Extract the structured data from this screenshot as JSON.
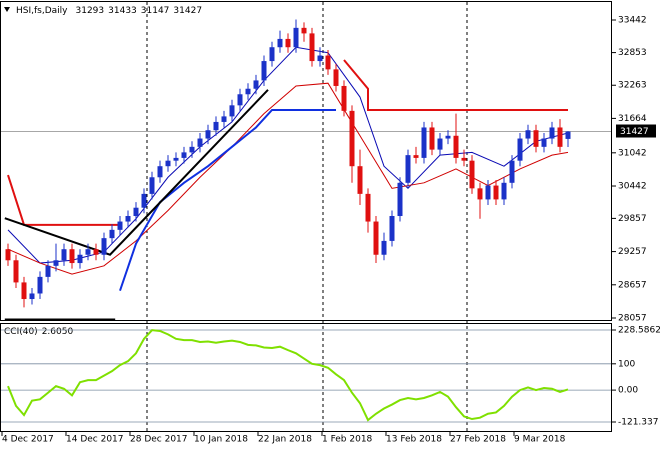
{
  "chart_data": [
    {
      "type": "candlestick",
      "title": "HSI,fs,Daily",
      "ohlc": [
        31293,
        31433,
        31147,
        31427
      ],
      "categories": [
        "4 Dec 2017",
        null,
        null,
        null,
        null,
        null,
        null,
        null,
        "14 Dec 2017",
        null,
        null,
        null,
        null,
        null,
        null,
        null,
        "28 Dec 2017",
        null,
        null,
        null,
        null,
        null,
        null,
        null,
        "10 Jan 2018",
        null,
        null,
        null,
        null,
        null,
        null,
        null,
        "22 Jan 2018",
        null,
        null,
        null,
        null,
        null,
        null,
        null,
        "1 Feb 2018",
        null,
        null,
        null,
        null,
        null,
        null,
        null,
        "13 Feb 2018",
        null,
        null,
        null,
        null,
        null,
        null,
        null,
        "27 Feb 2018",
        null,
        null,
        null,
        null,
        null,
        null,
        null,
        "9 Mar 2018",
        null,
        null,
        null,
        null,
        null,
        null
      ],
      "open": [
        29300,
        29100,
        28700,
        28400,
        28500,
        28800,
        29000,
        29100,
        29300,
        29050,
        29200,
        29300,
        29200,
        29500,
        29650,
        29800,
        29900,
        30050,
        30300,
        30600,
        30800,
        30900,
        30950,
        31050,
        31150,
        31300,
        31450,
        31600,
        31700,
        31900,
        32100,
        32200,
        32350,
        32700,
        32950,
        33100,
        32950,
        33300,
        33200,
        32700,
        32800,
        32550,
        32250,
        31800,
        30800,
        30300,
        29800,
        29200,
        29450,
        29900,
        30500,
        31000,
        30950,
        31500,
        31100,
        31300,
        31350,
        30950,
        30900,
        30400,
        30200,
        30450,
        30200,
        30500,
        30900,
        31300,
        31450,
        31150,
        31300,
        31500,
        31293
      ],
      "high": [
        29400,
        29200,
        28800,
        28600,
        28900,
        29100,
        29400,
        29400,
        29400,
        29300,
        29400,
        29400,
        29600,
        29750,
        29900,
        30000,
        30150,
        30400,
        30700,
        30900,
        31000,
        31050,
        31150,
        31250,
        31400,
        31550,
        31700,
        31800,
        32000,
        32200,
        32300,
        32450,
        32800,
        33050,
        33250,
        33200,
        33450,
        33400,
        33300,
        32950,
        32900,
        32650,
        32350,
        31900,
        31100,
        30400,
        29900,
        29600,
        30000,
        30600,
        31100,
        31150,
        31600,
        31600,
        31400,
        31450,
        31750,
        31100,
        31000,
        30500,
        30550,
        30550,
        30600,
        31000,
        31400,
        31550,
        31550,
        31400,
        31600,
        31650,
        31433
      ],
      "low": [
        29000,
        28600,
        28250,
        28300,
        28400,
        28700,
        28900,
        29000,
        28950,
        28950,
        29100,
        29100,
        29100,
        29400,
        29550,
        29700,
        29800,
        29950,
        30200,
        30500,
        30700,
        30800,
        30850,
        30950,
        31050,
        31200,
        31350,
        31500,
        31600,
        31800,
        32000,
        32100,
        32250,
        32600,
        32850,
        32850,
        32850,
        33050,
        32600,
        32600,
        32450,
        32150,
        31700,
        30500,
        30100,
        29600,
        29050,
        29100,
        29350,
        29800,
        30400,
        30850,
        30850,
        31000,
        31000,
        31200,
        30850,
        30800,
        30300,
        29850,
        30100,
        30100,
        30100,
        30400,
        30800,
        31200,
        31050,
        31050,
        31200,
        31050,
        31147
      ],
      "close": [
        29100,
        28700,
        28400,
        28500,
        28800,
        29000,
        29100,
        29300,
        29050,
        29200,
        29300,
        29200,
        29500,
        29650,
        29800,
        29900,
        30050,
        30300,
        30600,
        30800,
        30900,
        30950,
        31050,
        31150,
        31300,
        31450,
        31600,
        31700,
        31900,
        32100,
        32200,
        32350,
        32700,
        32950,
        33100,
        32950,
        33300,
        33200,
        32700,
        32800,
        32550,
        32250,
        31800,
        30800,
        30300,
        29800,
        29200,
        29450,
        29900,
        30500,
        31000,
        30950,
        31500,
        31100,
        31300,
        31350,
        30950,
        30900,
        30400,
        30200,
        30450,
        30200,
        30500,
        30900,
        31300,
        31450,
        31150,
        31300,
        31500,
        31150,
        31427
      ],
      "up_color": "#1b32c8",
      "down_color": "#e01010",
      "lines": [
        {
          "color": "#0a0ab4",
          "width": 1,
          "x": [
            0,
            4,
            8,
            12,
            16,
            20,
            24,
            28,
            32,
            36,
            40,
            44,
            47,
            50,
            54,
            58,
            62,
            66,
            70
          ],
          "values": [
            29650,
            29050,
            29100,
            29250,
            29850,
            30600,
            31150,
            31600,
            32350,
            32950,
            32850,
            32050,
            30800,
            30400,
            31000,
            31050,
            30800,
            31250,
            31400
          ]
        },
        {
          "color": "#d00000",
          "width": 1,
          "x": [
            0,
            4,
            8,
            12,
            16,
            20,
            24,
            28,
            32,
            36,
            40,
            44,
            48,
            52,
            56,
            60,
            64,
            68,
            70
          ],
          "values": [
            29300,
            29050,
            28850,
            29000,
            29450,
            30000,
            30600,
            31150,
            31750,
            32250,
            32300,
            31350,
            30400,
            30500,
            30750,
            30450,
            30750,
            31000,
            31050
          ]
        },
        {
          "color": "#e01010",
          "width": 2,
          "x": [
            0,
            2,
            14,
            15,
            42,
            45,
            45,
            70
          ],
          "values": [
            30640,
            29740,
            29740,
            null,
            32720,
            32200,
            31816,
            31816
          ]
        },
        {
          "color": "#1030e0",
          "width": 2,
          "x": [
            14,
            16,
            19,
            22,
            25,
            28,
            31,
            33,
            41
          ],
          "values": [
            28550,
            29400,
            30150,
            30500,
            30800,
            31150,
            31500,
            31816,
            31816
          ]
        },
        {
          "color": "#000000",
          "width": 2,
          "x": [
            -0.4,
            12.75,
            32.5
          ],
          "values": [
            29860,
            29200,
            32180
          ]
        },
        {
          "color": "#000000",
          "width": 2,
          "x": [
            -0.4,
            13.4
          ],
          "values": [
            28030,
            28030
          ]
        }
      ],
      "ylim": [
        28057,
        33442
      ],
      "yticks": [
        33442,
        32853,
        32263,
        31664,
        31042,
        30442,
        29857,
        29257,
        28657,
        28057
      ]
    },
    {
      "type": "line",
      "title": "CCI(40)",
      "last_label": "2.6050",
      "color": "#7fe000",
      "values": [
        15,
        -60,
        -95,
        -40,
        -35,
        -10,
        15,
        5,
        -20,
        30,
        38,
        38,
        55,
        72,
        95,
        110,
        140,
        195,
        228,
        225,
        212,
        195,
        190,
        190,
        183,
        185,
        180,
        185,
        188,
        183,
        172,
        170,
        162,
        160,
        165,
        152,
        140,
        120,
        100,
        95,
        85,
        60,
        38,
        -10,
        -50,
        -114,
        -90,
        -70,
        -55,
        -38,
        -30,
        -35,
        -30,
        -20,
        -7,
        -25,
        -65,
        -100,
        -110,
        -105,
        -90,
        -85,
        -60,
        -25,
        0,
        10,
        0,
        8,
        5,
        -7,
        2.605
      ],
      "ylim": [
        -121.337,
        228.5862
      ],
      "yticks": [
        228.5862,
        100,
        {
          "value": 0,
          "label": "0.00"
        },
        -121.337
      ]
    }
  ]
}
